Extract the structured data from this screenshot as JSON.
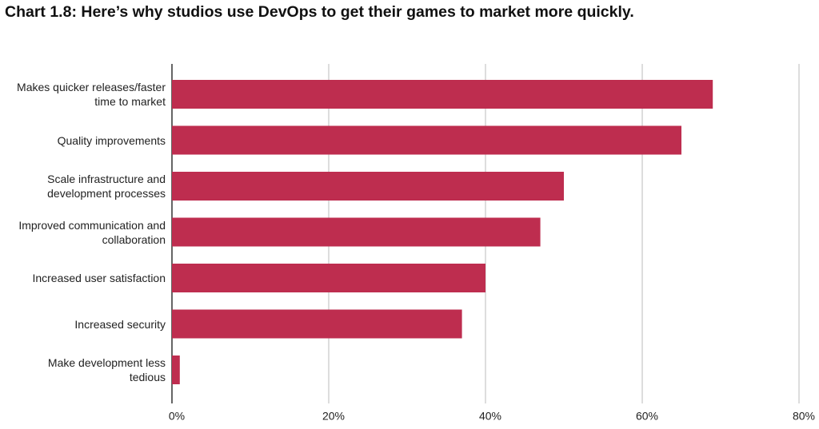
{
  "chart_data": {
    "type": "bar",
    "orientation": "horizontal",
    "title": "Chart 1.8: Here’s why studios use DevOps to get their games to market more quickly.",
    "categories": [
      "Makes quicker releases/faster time to market",
      "Quality improvements",
      "Scale infrastructure and development processes",
      "Improved communication and collaboration",
      "Increased user satisfaction",
      "Increased security",
      "Make development less tedious"
    ],
    "values": [
      69,
      65,
      50,
      47,
      40,
      37,
      1
    ],
    "color": "#be2d4f",
    "xlim": [
      0,
      80
    ],
    "xticks": [
      {
        "value": 0,
        "label": "0%"
      },
      {
        "value": 20,
        "label": "20%"
      },
      {
        "value": 40,
        "label": "40%"
      },
      {
        "value": 60,
        "label": "60%"
      },
      {
        "value": 80,
        "label": "80%"
      }
    ],
    "grid": true
  }
}
